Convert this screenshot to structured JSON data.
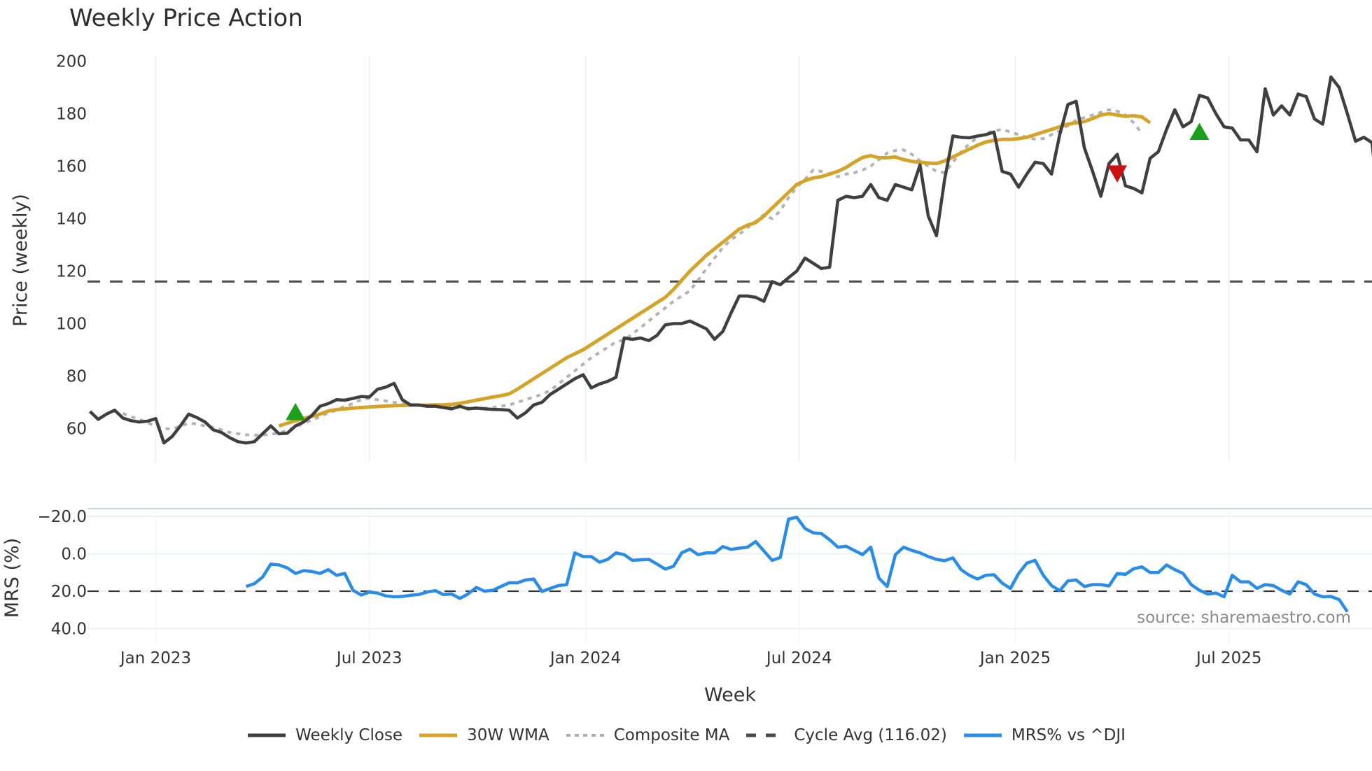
{
  "title": "Weekly Price Action",
  "source_label": "source: sharemaestro.com",
  "legend": [
    {
      "label": "Weekly Close",
      "color": "#3f3f3f",
      "style": "solid"
    },
    {
      "label": "30W WMA",
      "color": "#d4a32a",
      "style": "solid"
    },
    {
      "label": "Composite MA",
      "color": "#b0b0b0",
      "style": "dotted"
    },
    {
      "label": "Cycle Avg (116.02)",
      "color": "#4a4a4a",
      "style": "dashed"
    },
    {
      "label": "MRS% vs ^DJI",
      "color": "#2b8ce6",
      "style": "solid"
    }
  ],
  "chart_data": [
    {
      "type": "line",
      "title": "Weekly Price Action",
      "xlabel": "Week",
      "ylabel": "Price (weekly)",
      "ylim": [
        47,
        202
      ],
      "yticks": [
        60,
        80,
        100,
        120,
        140,
        160,
        180,
        200
      ],
      "xticks": [
        "Jan 2023",
        "Jul 2023",
        "Jan 2024",
        "Jul 2024",
        "Jan 2025",
        "Jul 2025"
      ],
      "grid": true,
      "legend_position": "bottom",
      "reference_lines": [
        {
          "name": "Cycle Avg",
          "value": 116.02,
          "style": "dashed"
        }
      ],
      "x_start_week": -8,
      "series": [
        {
          "name": "Weekly Close",
          "start_week": -8,
          "values": [
            66.5,
            63.5,
            65.5,
            67,
            64,
            63,
            62.5,
            62.8,
            63.8,
            54.5,
            57,
            61,
            65.5,
            64.2,
            62.5,
            59.5,
            58.5,
            56.5,
            55,
            54.5,
            55,
            58,
            61,
            58,
            58.2,
            61,
            62.5,
            65,
            68.5,
            69.5,
            71,
            70.8,
            71.5,
            72.2,
            72,
            75,
            75.8,
            77.2,
            71,
            69,
            69,
            68.5,
            68.5,
            68,
            67.5,
            68.5,
            67.5,
            67.8,
            67.5,
            67.3,
            67.2,
            67,
            64,
            66,
            69,
            70,
            73,
            75,
            77,
            79,
            80.5,
            75.5,
            77,
            78,
            79.5,
            94.5,
            94,
            94.5,
            93.5,
            95.5,
            99.5,
            100,
            100,
            101,
            99.5,
            98,
            94,
            97,
            104,
            110.5,
            110.5,
            110,
            108.5,
            116,
            114.8,
            117.5,
            120,
            125,
            123,
            121,
            121.5,
            147,
            148.5,
            148,
            148.5,
            153,
            148,
            147,
            153,
            152,
            151,
            160.5,
            141,
            133.5,
            155,
            171.5,
            171,
            170.8,
            171.5,
            172,
            173,
            158,
            157,
            152,
            157,
            161.5,
            161,
            157,
            172,
            183.5,
            184.7,
            167,
            158,
            148.5,
            161,
            164.5,
            152.5,
            151.5,
            149.8,
            163,
            165.5,
            174,
            181.5,
            175,
            177,
            187,
            186,
            180,
            175,
            174.5,
            170,
            170,
            165.5,
            189.5,
            179.5,
            183,
            179.5,
            187.5,
            186.5,
            178,
            176,
            194,
            190,
            180,
            169.5,
            171,
            169,
            139
          ]
        },
        {
          "name": "30W WMA",
          "start_week": 15,
          "values": [
            61,
            62,
            63,
            63.8,
            64.7,
            65.5,
            66.7,
            67.2,
            67.5,
            67.8,
            68,
            68.2,
            68.4,
            68.6,
            68.7,
            68.8,
            68.9,
            68.9,
            68.9,
            69,
            69,
            69.2,
            69.6,
            70.2,
            70.8,
            71.4,
            72,
            72.5,
            73.2,
            75,
            77,
            79,
            81,
            83,
            85,
            87,
            88.5,
            90,
            92,
            94,
            96,
            98,
            100,
            102,
            104,
            106,
            108,
            110,
            113,
            116.5,
            120,
            123,
            126,
            128.5,
            131,
            133.5,
            136,
            137.5,
            138.5,
            141,
            144,
            147,
            150,
            153,
            154.5,
            155.5,
            156,
            157,
            158,
            159.5,
            161.5,
            163.3,
            164,
            163.2,
            163.2,
            163.5,
            162.5,
            161.8,
            161.5,
            161.2,
            161,
            162,
            163.5,
            165,
            166.5,
            168,
            169.2,
            169.8,
            170.2,
            170.2,
            170.5,
            171,
            172,
            173,
            174,
            175,
            176,
            176.5,
            177,
            178.2,
            179.5,
            180,
            179.5,
            179,
            179.2,
            178.8,
            176.5
          ]
        },
        {
          "name": "Composite MA",
          "start_week": -4,
          "values": [
            65.8,
            64.5,
            63.5,
            62.2,
            61,
            60,
            59.8,
            61,
            62,
            61.8,
            61,
            60.4,
            59.5,
            58.5,
            58,
            57.6,
            57.5,
            57.5,
            57.8,
            58.3,
            59.3,
            60.5,
            62,
            63.2,
            64.5,
            66,
            67,
            68.5,
            69.5,
            71,
            71.5,
            71,
            70.5,
            70,
            69.5,
            69,
            68.8,
            68.5,
            68.3,
            68.2,
            68,
            68,
            67.8,
            67.6,
            67.8,
            68,
            68.5,
            69,
            70,
            71,
            72,
            73,
            74.5,
            77,
            79.5,
            82,
            84.5,
            87,
            89,
            91,
            93,
            93.8,
            96,
            98.5,
            101,
            103.5,
            106,
            108.5,
            110.5,
            112.5,
            116.5,
            121,
            125,
            129,
            132,
            134,
            136.5,
            139,
            141.5,
            140,
            143,
            148,
            152,
            155,
            158.5,
            158,
            157,
            156,
            157,
            157.5,
            158.5,
            160,
            162.5,
            165,
            166,
            166.2,
            164.5,
            162,
            160,
            158,
            157.5,
            161.5,
            165.5,
            168.5,
            171,
            172.5,
            173.5,
            174,
            173,
            172,
            171,
            170.3,
            170.5,
            172,
            173.5,
            175.5,
            177.5,
            178.5,
            179.5,
            180.5,
            181.5,
            181,
            179.5,
            176.5,
            172.5
          ]
        }
      ],
      "markers": [
        {
          "type": "buy",
          "shape": "triangle-up",
          "color": "#1aa01a",
          "week": 17,
          "value": 66
        },
        {
          "type": "sell",
          "shape": "triangle-down",
          "color": "#cc1111",
          "week": 117,
          "value": 157.5
        },
        {
          "type": "buy",
          "shape": "triangle-up",
          "color": "#1aa01a",
          "week": 127,
          "value": 172.8
        }
      ]
    },
    {
      "type": "line",
      "title": "",
      "xlabel": "Week",
      "ylabel": "MRS (%)",
      "ylim": [
        -25,
        44
      ],
      "yticks": [
        -20.0,
        0.0,
        20.0,
        40.0
      ],
      "grid": true,
      "reference_lines": [
        {
          "name": "zero",
          "value": 0.0,
          "style": "dashed"
        }
      ],
      "series": [
        {
          "name": "MRS% vs ^DJI",
          "start_week": 11,
          "values": [
            2.5,
            4,
            7.5,
            14.5,
            14,
            12.5,
            9.5,
            11,
            10.5,
            9.5,
            11.5,
            8.5,
            9.5,
            0.5,
            -2,
            -0.5,
            -1,
            -2.5,
            -3,
            -2.8,
            -2.2,
            -1.8,
            -0.5,
            0.3,
            -1.8,
            -1.5,
            -3.8,
            -1.5,
            2,
            0,
            0.5,
            2.5,
            4.5,
            4.5,
            6,
            6.5,
            -0.2,
            1.5,
            3,
            3.5,
            20.5,
            18.5,
            18.5,
            15.5,
            17,
            20.5,
            19.5,
            16.5,
            16.8,
            17,
            14.5,
            11.8,
            13.3,
            20.5,
            22.5,
            19.5,
            20.5,
            20.5,
            23.8,
            22.3,
            23,
            23.5,
            26.5,
            21.5,
            16.5,
            18,
            38.5,
            39.5,
            33.5,
            31.2,
            30.8,
            27.5,
            23.5,
            24,
            21.8,
            19.5,
            23.5,
            7,
            2.5,
            19.5,
            23.5,
            21.8,
            20.5,
            18.5,
            17,
            16.3,
            17.8,
            11.5,
            8.5,
            6.5,
            8.5,
            8.8,
            4.3,
            1.5,
            9.5,
            15,
            16.5,
            8.5,
            3,
            0.3,
            5.5,
            6,
            2.5,
            3.5,
            3.5,
            2.8,
            9.5,
            9,
            12,
            13,
            10,
            10,
            14,
            11.5,
            9.5,
            3.5,
            0.5,
            -1.5,
            -1,
            -3,
            8.5,
            5,
            5,
            1.5,
            3.5,
            3,
            0.5,
            -1.5,
            5,
            3.5,
            -1.5,
            -3,
            -2.8,
            -4.5,
            -11
          ]
        }
      ]
    }
  ],
  "axes": {
    "price_y_ticks": [
      "200",
      "180",
      "160",
      "140",
      "120",
      "100",
      "80",
      "60"
    ],
    "price_y_label": "Price (weekly)",
    "mrs_y_ticks": [
      "40.0",
      "20.0",
      "0.0",
      "−20.0"
    ],
    "mrs_y_label": "MRS (%)",
    "x_ticks": [
      "Jan 2023",
      "Jul 2023",
      "Jan 2024",
      "Jul 2024",
      "Jan 2025",
      "Jul 2025"
    ],
    "x_label": "Week"
  }
}
